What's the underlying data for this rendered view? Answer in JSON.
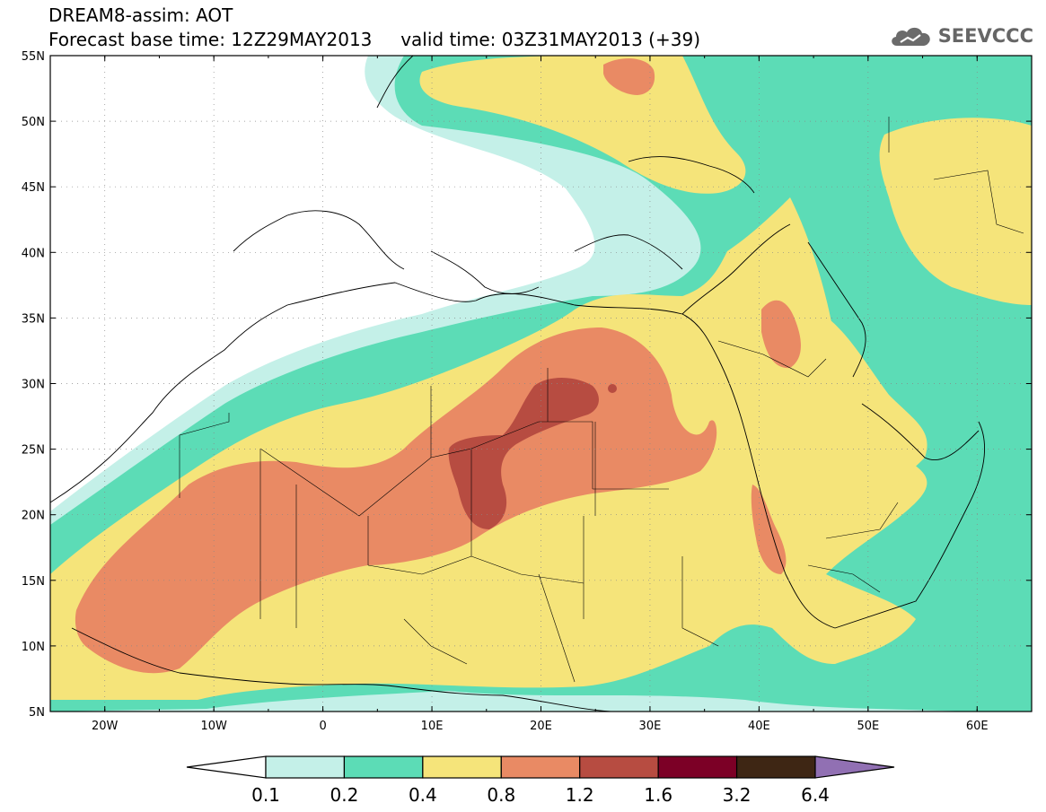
{
  "header": {
    "title_line1": "DREAM8-assim: AOT",
    "title_line2": "Forecast base time: 12Z29MAY2013     valid time: 03Z31MAY2013 (+39)"
  },
  "logo": {
    "text": "SEEVCCC",
    "icon": "cloud-icon"
  },
  "map": {
    "lon_range": [
      -25,
      65
    ],
    "lat_range": [
      5,
      55
    ],
    "lat_labels": [
      "55N",
      "50N",
      "45N",
      "40N",
      "35N",
      "30N",
      "25N",
      "20N",
      "15N",
      "10N",
      "5N"
    ],
    "lon_labels": [
      "20W",
      "10W",
      "0",
      "10E",
      "20E",
      "30E",
      "40E",
      "50E",
      "60E"
    ],
    "grid": "dotted"
  },
  "colorbar": {
    "labels": [
      "0.1",
      "0.2",
      "0.4",
      "0.8",
      "1.2",
      "1.6",
      "3.2",
      "6.4"
    ],
    "colors": [
      "#ffffff",
      "#c4f0e8",
      "#5cdcb6",
      "#f5e47a",
      "#e98a64",
      "#b74c41",
      "#7c0026",
      "#3e2614",
      "#9170b3"
    ]
  },
  "colors": {
    "c01": "#c4f0e8",
    "c02": "#5cdcb6",
    "c04": "#f5e47a",
    "c08": "#e98a64",
    "c12": "#b74c41"
  }
}
